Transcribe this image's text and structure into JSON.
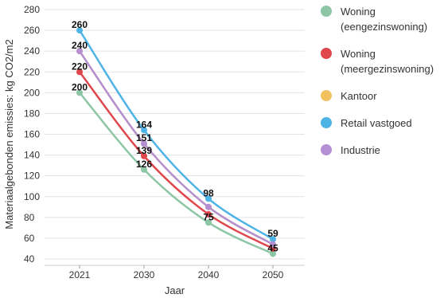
{
  "chart_data": {
    "type": "line",
    "xlabel": "Jaar",
    "ylabel": "Materiaalgebonden emissies: kg CO2/m2",
    "categories": [
      "2021",
      "2030",
      "2040",
      "2050"
    ],
    "ylim": [
      40,
      280
    ],
    "yticks": [
      40,
      60,
      80,
      100,
      120,
      140,
      160,
      180,
      200,
      220,
      240,
      260,
      280
    ],
    "grid": "horizontal",
    "legend_position": "right",
    "smooth": true,
    "series": [
      {
        "name": "Woning (eengezinswoning)",
        "name_lines": [
          "Woning",
          "(eengezinswoning)"
        ],
        "color": "#8cc6a5",
        "values": [
          200,
          126,
          75,
          45
        ]
      },
      {
        "name": "Woning (meergezinswoning)",
        "name_lines": [
          "Woning",
          "(meergezinswoning)"
        ],
        "color": "#e0474c",
        "values": [
          220,
          139,
          83,
          50
        ]
      },
      {
        "name": "Kantoor",
        "name_lines": [
          "Kantoor"
        ],
        "color": "#f2c261",
        "values": [
          240,
          151,
          90,
          54
        ]
      },
      {
        "name": "Retail vastgoed",
        "name_lines": [
          "Retail vastgoed"
        ],
        "color": "#4eb3e6",
        "values": [
          260,
          164,
          98,
          59
        ]
      },
      {
        "name": "Industrie",
        "name_lines": [
          "Industrie"
        ],
        "color": "#b48fd2",
        "values": [
          240,
          151,
          90,
          54
        ]
      }
    ],
    "data_labels": [
      {
        "category": "2021",
        "value": 260,
        "text": "260"
      },
      {
        "category": "2021",
        "value": 240,
        "text": "240"
      },
      {
        "category": "2021",
        "value": 220,
        "text": "220"
      },
      {
        "category": "2021",
        "value": 200,
        "text": "200"
      },
      {
        "category": "2030",
        "value": 164,
        "text": "164"
      },
      {
        "category": "2030",
        "value": 151,
        "text": "151"
      },
      {
        "category": "2030",
        "value": 139,
        "text": "139"
      },
      {
        "category": "2030",
        "value": 126,
        "text": "126"
      },
      {
        "category": "2040",
        "value": 98,
        "text": "98"
      },
      {
        "category": "2040",
        "value": 75,
        "text": "75"
      },
      {
        "category": "2050",
        "value": 59,
        "text": "59"
      },
      {
        "category": "2050",
        "value": 45,
        "text": "45"
      }
    ]
  }
}
